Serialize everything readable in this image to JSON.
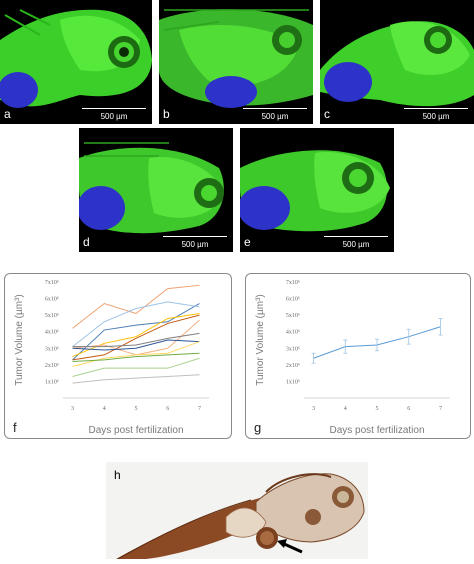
{
  "panels": [
    {
      "label": "a",
      "scale": "500 µm"
    },
    {
      "label": "b",
      "scale": "500 µm"
    },
    {
      "label": "c",
      "scale": "500 µm"
    },
    {
      "label": "d",
      "scale": "500 µm"
    },
    {
      "label": "e",
      "scale": "500 µm"
    }
  ],
  "panel_h": {
    "label": "h"
  },
  "chart_data": [
    {
      "panel": "f",
      "type": "line",
      "xlabel": "Days post fertilization",
      "ylabel": "Tumor Volume (µm³)",
      "x": [
        3,
        4,
        5,
        6,
        7
      ],
      "ylim": [
        0,
        7000000
      ],
      "yticks": [
        "",
        "1x10⁶",
        "2x10⁶",
        "3x10⁶",
        "4x10⁶",
        "5x10⁶",
        "6x10⁶",
        "7x10⁶"
      ],
      "series": [
        {
          "color": "#f0a070",
          "values": [
            4200000,
            5700000,
            5100000,
            6600000,
            6800000
          ]
        },
        {
          "color": "#4a7fb5",
          "values": [
            2300000,
            4100000,
            4400000,
            4600000,
            5700000
          ]
        },
        {
          "color": "#9dc3e6",
          "values": [
            3100000,
            4600000,
            5400000,
            5800000,
            5500000
          ]
        },
        {
          "color": "#c55a11",
          "values": [
            2300000,
            2600000,
            3600000,
            4500000,
            5000000
          ]
        },
        {
          "color": "#ffc000",
          "values": [
            2500000,
            3300000,
            3700000,
            4800000,
            5100000
          ]
        },
        {
          "color": "#f4b183",
          "values": [
            3000000,
            3200000,
            2600000,
            3000000,
            4700000
          ]
        },
        {
          "color": "#7f7f7f",
          "values": [
            3100000,
            3100000,
            3200000,
            3600000,
            3900000
          ]
        },
        {
          "color": "#2e5596",
          "values": [
            3000000,
            2900000,
            3000000,
            3500000,
            3400000
          ]
        },
        {
          "color": "#ffd966",
          "values": [
            1900000,
            2400000,
            2600000,
            2700000,
            3400000
          ]
        },
        {
          "color": "#70ad47",
          "values": [
            2200000,
            2300000,
            2500000,
            2600000,
            2700000
          ]
        },
        {
          "color": "#a9d18e",
          "values": [
            1300000,
            1800000,
            1800000,
            1800000,
            2400000
          ]
        },
        {
          "color": "#bfbfbf",
          "values": [
            900000,
            1100000,
            1200000,
            1300000,
            1400000
          ]
        }
      ]
    },
    {
      "panel": "g",
      "type": "line",
      "xlabel": "Days post fertilization",
      "ylabel": "Tumor Volume (µm³)",
      "x": [
        3,
        4,
        5,
        6,
        7
      ],
      "ylim": [
        0,
        7000000
      ],
      "yticks": [
        "",
        "1x10⁶",
        "2x10⁶",
        "3x10⁶",
        "4x10⁶",
        "5x10⁶",
        "6x10⁶",
        "7x10⁶"
      ],
      "series": [
        {
          "color": "#5b9bd5",
          "values": [
            2400000,
            3100000,
            3200000,
            3700000,
            4300000
          ],
          "error": [
            300000,
            400000,
            350000,
            450000,
            500000
          ]
        }
      ]
    }
  ]
}
